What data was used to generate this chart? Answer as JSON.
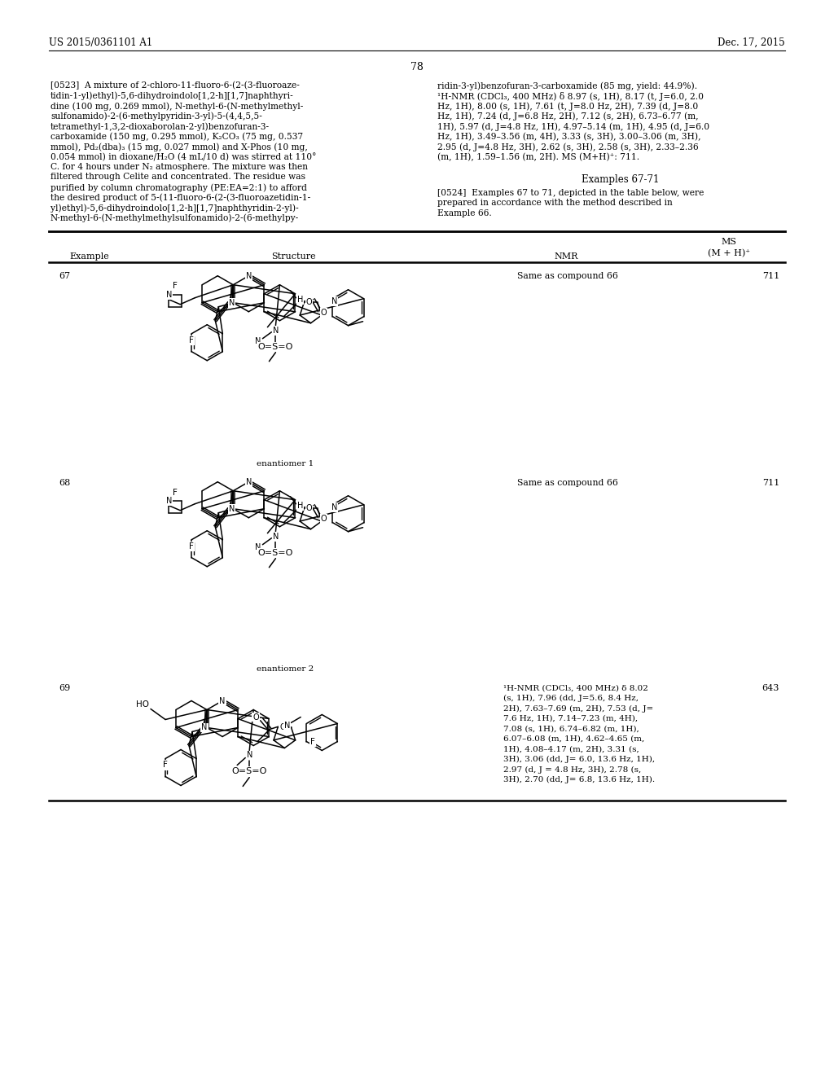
{
  "bg": "#ffffff",
  "header_left": "US 2015/0361101 A1",
  "header_right": "Dec. 17, 2015",
  "page_num": "78",
  "left_col": [
    "[0523]  A mixture of 2-chloro-11-fluoro-6-(2-(3-fluoroaze-",
    "tidin-1-yl)ethyl)-5,6-dihydroindolo[1,2-h][1,7]naphthyri-",
    "dine (100 mg, 0.269 mmol), N-methyl-6-(N-methylmethyl-",
    "sulfonamido)-2-(6-methylpyridin-3-yl)-5-(4,4,5,5-",
    "tetramethyl-1,3,2-dioxaborolan-2-yl)benzofuran-3-",
    "carboxamide (150 mg, 0.295 mmol), K₂CO₃ (75 mg, 0.537",
    "mmol), Pd₂(dba)₃ (15 mg, 0.027 mmol) and X-Phos (10 mg,",
    "0.054 mmol) in dioxane/H₂O (4 mL/10 d) was stirred at 110°",
    "C. for 4 hours under N₂ atmosphere. The mixture was then",
    "filtered through Celite and concentrated. The residue was",
    "purified by column chromatography (PE:EA=2:1) to afford",
    "the desired product of 5-(11-fluoro-6-(2-(3-fluoroazetidin-1-",
    "yl)ethyl)-5,6-dihydroindolo[1,2-h][1,7]naphthyridin-2-yl)-",
    "N-methyl-6-(N-methylmethylsulfonamido)-2-(6-methylpy-"
  ],
  "right_col": [
    "ridin-3-yl)benzofuran-3-carboxamide (85 mg, yield: 44.9%).",
    "¹H-NMR (CDCl₃, 400 MHz) δ 8.97 (s, 1H), 8.17 (t, J=6.0, 2.0",
    "Hz, 1H), 8.00 (s, 1H), 7.61 (t, J=8.0 Hz, 2H), 7.39 (d, J=8.0",
    "Hz, 1H), 7.24 (d, J=6.8 Hz, 2H), 7.12 (s, 2H), 6.73–6.77 (m,",
    "1H), 5.97 (d, J=4.8 Hz, 1H), 4.97–5.14 (m, 1H), 4.95 (d, J=6.0",
    "Hz, 1H), 3.49–3.56 (m, 4H), 3.33 (s, 3H), 3.00–3.06 (m, 3H),",
    "2.95 (d, J=4.8 Hz, 3H), 2.62 (s, 3H), 2.58 (s, 3H), 2.33–2.36",
    "(m, 1H), 1.59–1.56 (m, 2H). MS (M+H)⁺: 711."
  ],
  "section_examples": "Examples 67-71",
  "p524_lines": [
    "[0524]  Examples 67 to 71, depicted in the table below, were",
    "prepared in accordance with the method described in",
    "Example 66."
  ],
  "tbl_h1": "Example",
  "tbl_h2": "Structure",
  "tbl_h3": "NMR",
  "tbl_h4a": "MS",
  "tbl_h4b": "(M + H)⁺",
  "row67_ex": "67",
  "row67_nmr": "Same as compound 66",
  "row67_ms": "711",
  "row67_lbl": "enantiomer 1",
  "row68_ex": "68",
  "row68_nmr": "Same as compound 66",
  "row68_ms": "711",
  "row68_lbl": "enantiomer 2",
  "row69_ex": "69",
  "row69_nmr": [
    "¹H-NMR (CDCl₃, 400 MHz) δ 8.02",
    "(s, 1H), 7.96 (dd, J=5.6, 8.4 Hz,",
    "2H), 7.63–7.69 (m, 2H), 7.53 (d, J=",
    "7.6 Hz, 1H), 7.14–7.23 (m, 4H),",
    "7.08 (s, 1H), 6.74–6.82 (m, 1H),",
    "6.07–6.08 (m, 1H), 4.62–4.65 (m,",
    "1H), 4.08–4.17 (m, 2H), 3.31 (s,",
    "3H), 3.06 (dd, J= 6.0, 13.6 Hz, 1H),",
    "2.97 (d, J = 4.8 Hz, 3H), 2.78 (s,",
    "3H), 2.70 (dd, J= 6.8, 13.6 Hz, 1H)."
  ],
  "row69_ms": "643"
}
